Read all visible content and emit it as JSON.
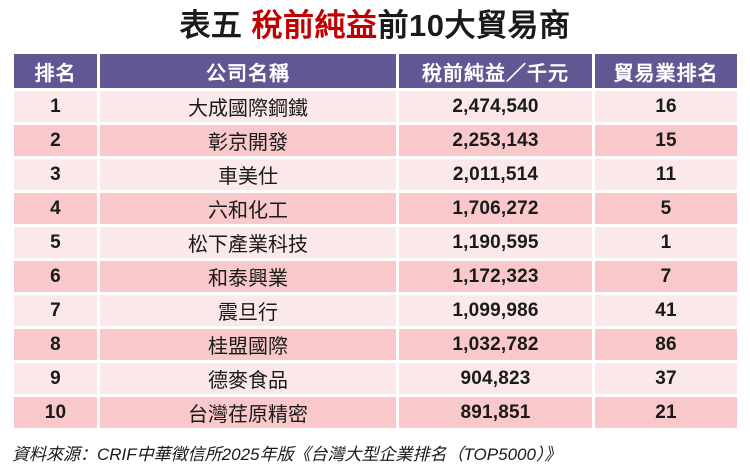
{
  "title": {
    "prefix": "表五 ",
    "highlight": "稅前純益",
    "suffix": "前10大貿易商"
  },
  "colors": {
    "header_bg": "#615893",
    "row_light": "#FBE9E9",
    "row_dark": "#F8C8CA",
    "highlight_red": "#C00000"
  },
  "chart_data": {
    "type": "table",
    "title": "表五 稅前純益前10大貿易商",
    "columns": [
      "排名",
      "公司名稱",
      "稅前純益／千元",
      "貿易業排名"
    ],
    "rows": [
      [
        "1",
        "大成國際鋼鐵",
        "2,474,540",
        "16"
      ],
      [
        "2",
        "彰京開發",
        "2,253,143",
        "15"
      ],
      [
        "3",
        "車美仕",
        "2,011,514",
        "11"
      ],
      [
        "4",
        "六和化工",
        "1,706,272",
        "5"
      ],
      [
        "5",
        "松下產業科技",
        "1,190,595",
        "1"
      ],
      [
        "6",
        "和泰興業",
        "1,172,323",
        "7"
      ],
      [
        "7",
        "震旦行",
        "1,099,986",
        "41"
      ],
      [
        "8",
        "桂盟國際",
        "1,032,782",
        "86"
      ],
      [
        "9",
        "德麥食品",
        "904,823",
        "37"
      ],
      [
        "10",
        "台灣荏原精密",
        "891,851",
        "21"
      ]
    ]
  },
  "footer": {
    "source": "資料來源：CRIF中華徵信所2025年版《台灣大型企業排名（TOP5000）》"
  }
}
